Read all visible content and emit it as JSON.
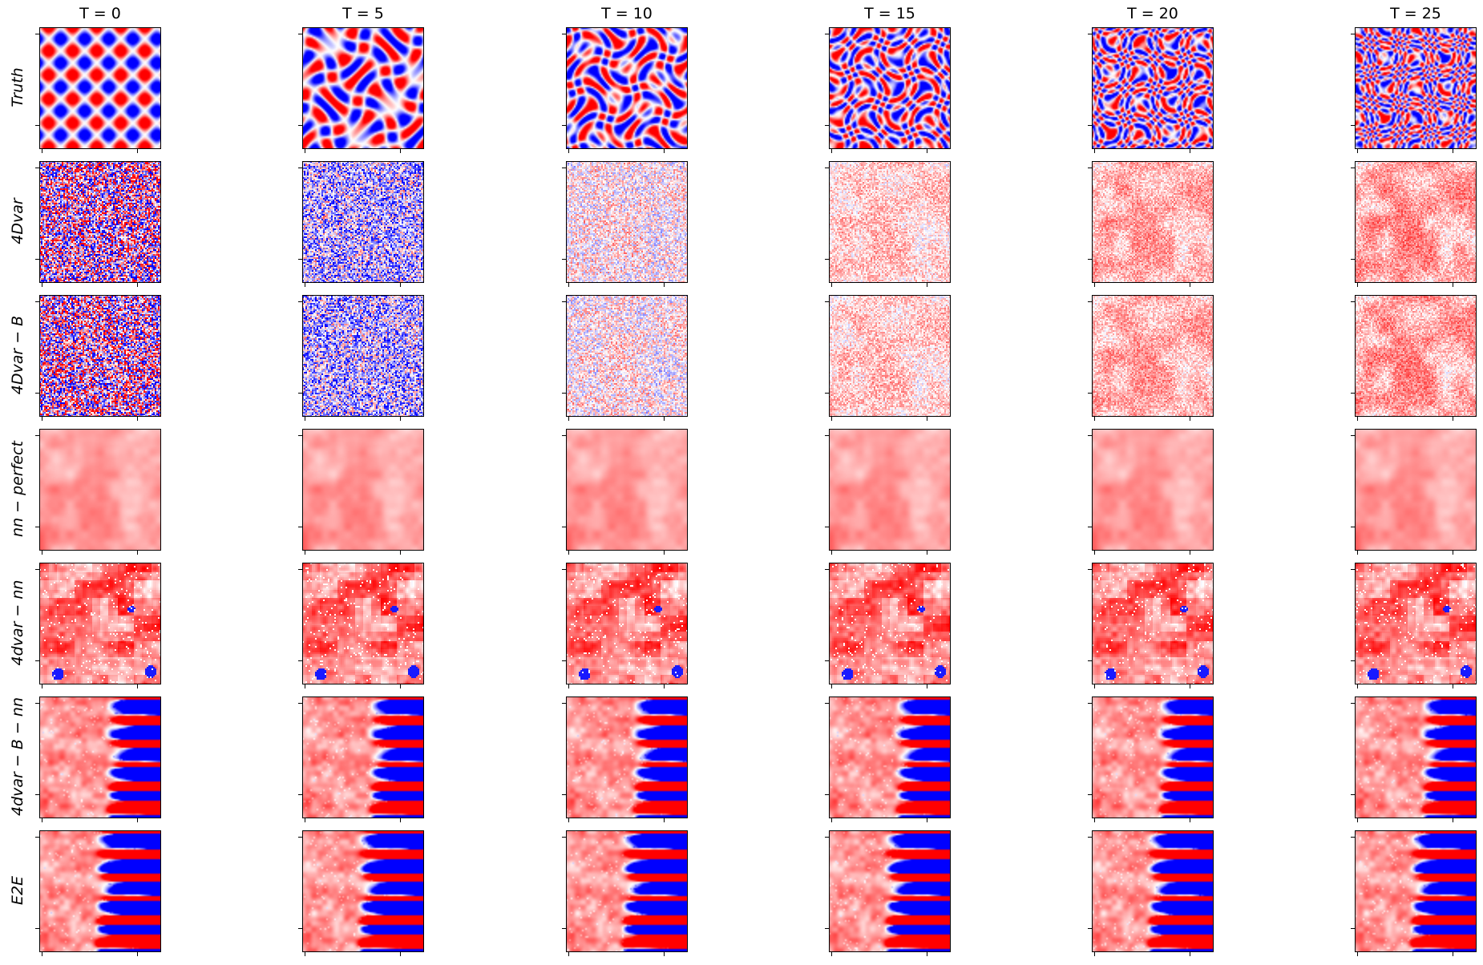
{
  "chart_data": {
    "type": "heatmap",
    "description_rows_by_columns": "7 method rows x 6 time columns of 2D field snapshots, diverging red-white-blue colormap",
    "colormap": [
      "#0000ff",
      "#ffffff",
      "#ff0000"
    ],
    "columns": [
      {
        "label": "T = 0",
        "T": 0
      },
      {
        "label": "T = 5",
        "T": 5
      },
      {
        "label": "T = 10",
        "T": 10
      },
      {
        "label": "T = 15",
        "T": 15
      },
      {
        "label": "T = 20",
        "T": 20
      },
      {
        "label": "T = 25",
        "T": 25
      }
    ],
    "rows": [
      {
        "label": "Truth",
        "pattern": "wave"
      },
      {
        "label": "4Dvar",
        "pattern": "noise"
      },
      {
        "label": "4Dvar − B",
        "pattern": "noise"
      },
      {
        "label": "nn − perfect",
        "pattern": "smooth"
      },
      {
        "label": "4dvar − nn",
        "pattern": "blocky"
      },
      {
        "label": "4dvar − B − nn",
        "pattern": "turbulent"
      },
      {
        "label": "E2E",
        "pattern": "turbulent"
      }
    ],
    "ticks_per_axis": 2,
    "tick_labels_shown": false
  }
}
